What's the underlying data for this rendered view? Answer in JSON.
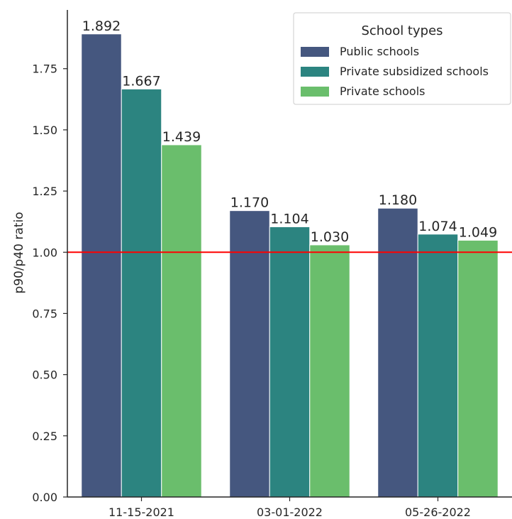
{
  "chart_data": {
    "type": "bar",
    "categories": [
      "11-15-2021",
      "03-01-2022",
      "05-26-2022"
    ],
    "series": [
      {
        "name": "Public schools",
        "values": [
          1.892,
          1.17,
          1.18
        ],
        "labels": [
          "1.892",
          "1.170",
          "1.180"
        ],
        "color": "#45577f"
      },
      {
        "name": "Private subsidized schools",
        "values": [
          1.667,
          1.104,
          1.074
        ],
        "labels": [
          "1.667",
          "1.104",
          "1.074"
        ],
        "color": "#2c8480"
      },
      {
        "name": "Private schools",
        "values": [
          1.439,
          1.03,
          1.049
        ],
        "labels": [
          "1.439",
          "1.030",
          "1.049"
        ],
        "color": "#6abe6c"
      }
    ],
    "xlabel": "",
    "ylabel": "p90/p40 ratio",
    "ylim": [
      0,
      1.99
    ],
    "yticks": [
      "0.00",
      "0.25",
      "0.50",
      "0.75",
      "1.00",
      "1.25",
      "1.50",
      "1.75"
    ],
    "reference_line": {
      "value": 1.0,
      "color": "#ff0000"
    },
    "legend": {
      "title": "School types",
      "position": "top-right"
    },
    "grid": false
  }
}
